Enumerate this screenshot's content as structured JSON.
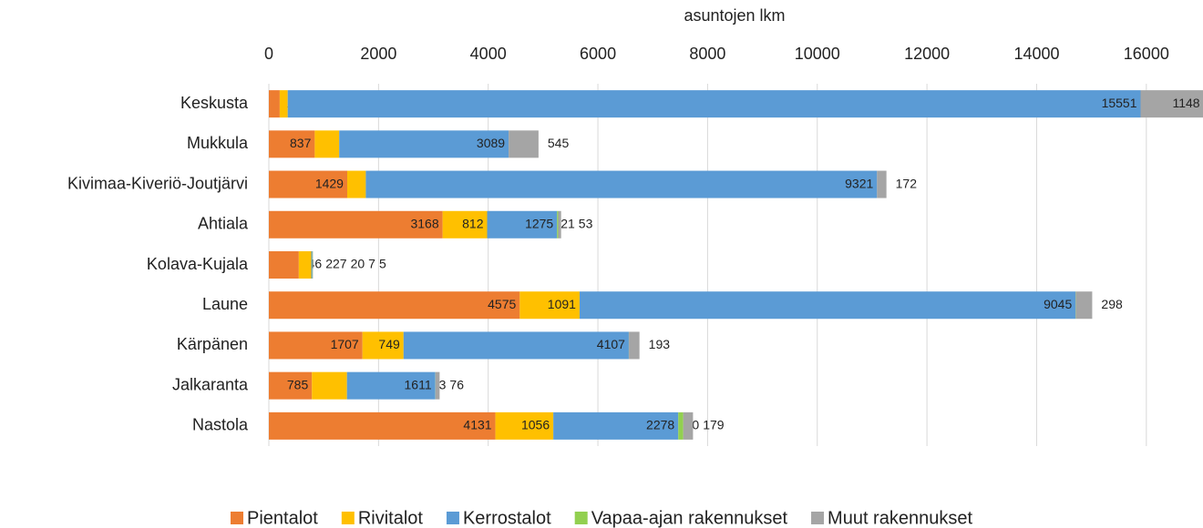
{
  "chart_data": {
    "type": "stacked_barh",
    "x_label": "asuntojen lkm",
    "categories": [
      "Keskusta",
      "Mukkula",
      "Kivimaa-Kiveriö-Joutjärvi",
      "Ahtiala",
      "Kolava-Kujala",
      "Laune",
      "Kärpänen",
      "Jalkaranta",
      "Nastola"
    ],
    "series": [
      {
        "name": "Pientalot",
        "color": "#ed7d31",
        "values": [
          198,
          837,
          1429,
          3168,
          546,
          4575,
          1707,
          785,
          4131
        ]
      },
      {
        "name": "Rivitalot",
        "color": "#ffc000",
        "values": [
          146,
          446,
          339,
          812,
          227,
          1091,
          749,
          639,
          1056
        ]
      },
      {
        "name": "Kerrostalot",
        "color": "#5b9bd5",
        "values": [
          15551,
          3089,
          9321,
          1275,
          20,
          9045,
          4107,
          1611,
          2278
        ]
      },
      {
        "name": "Vapaa-ajan rakennukset",
        "color": "#92d050",
        "values": [
          null,
          null,
          null,
          21,
          7,
          4,
          2,
          3,
          90
        ]
      },
      {
        "name": "Muut rakennukset",
        "color": "#a5a5a5",
        "values": [
          1148,
          545,
          172,
          53,
          5,
          298,
          193,
          76,
          179
        ]
      }
    ],
    "xlim": [
      0,
      17000
    ],
    "xticks": [
      0,
      2000,
      4000,
      6000,
      8000,
      10000,
      12000,
      14000,
      16000
    ],
    "grid": true,
    "legend": "bottom"
  }
}
